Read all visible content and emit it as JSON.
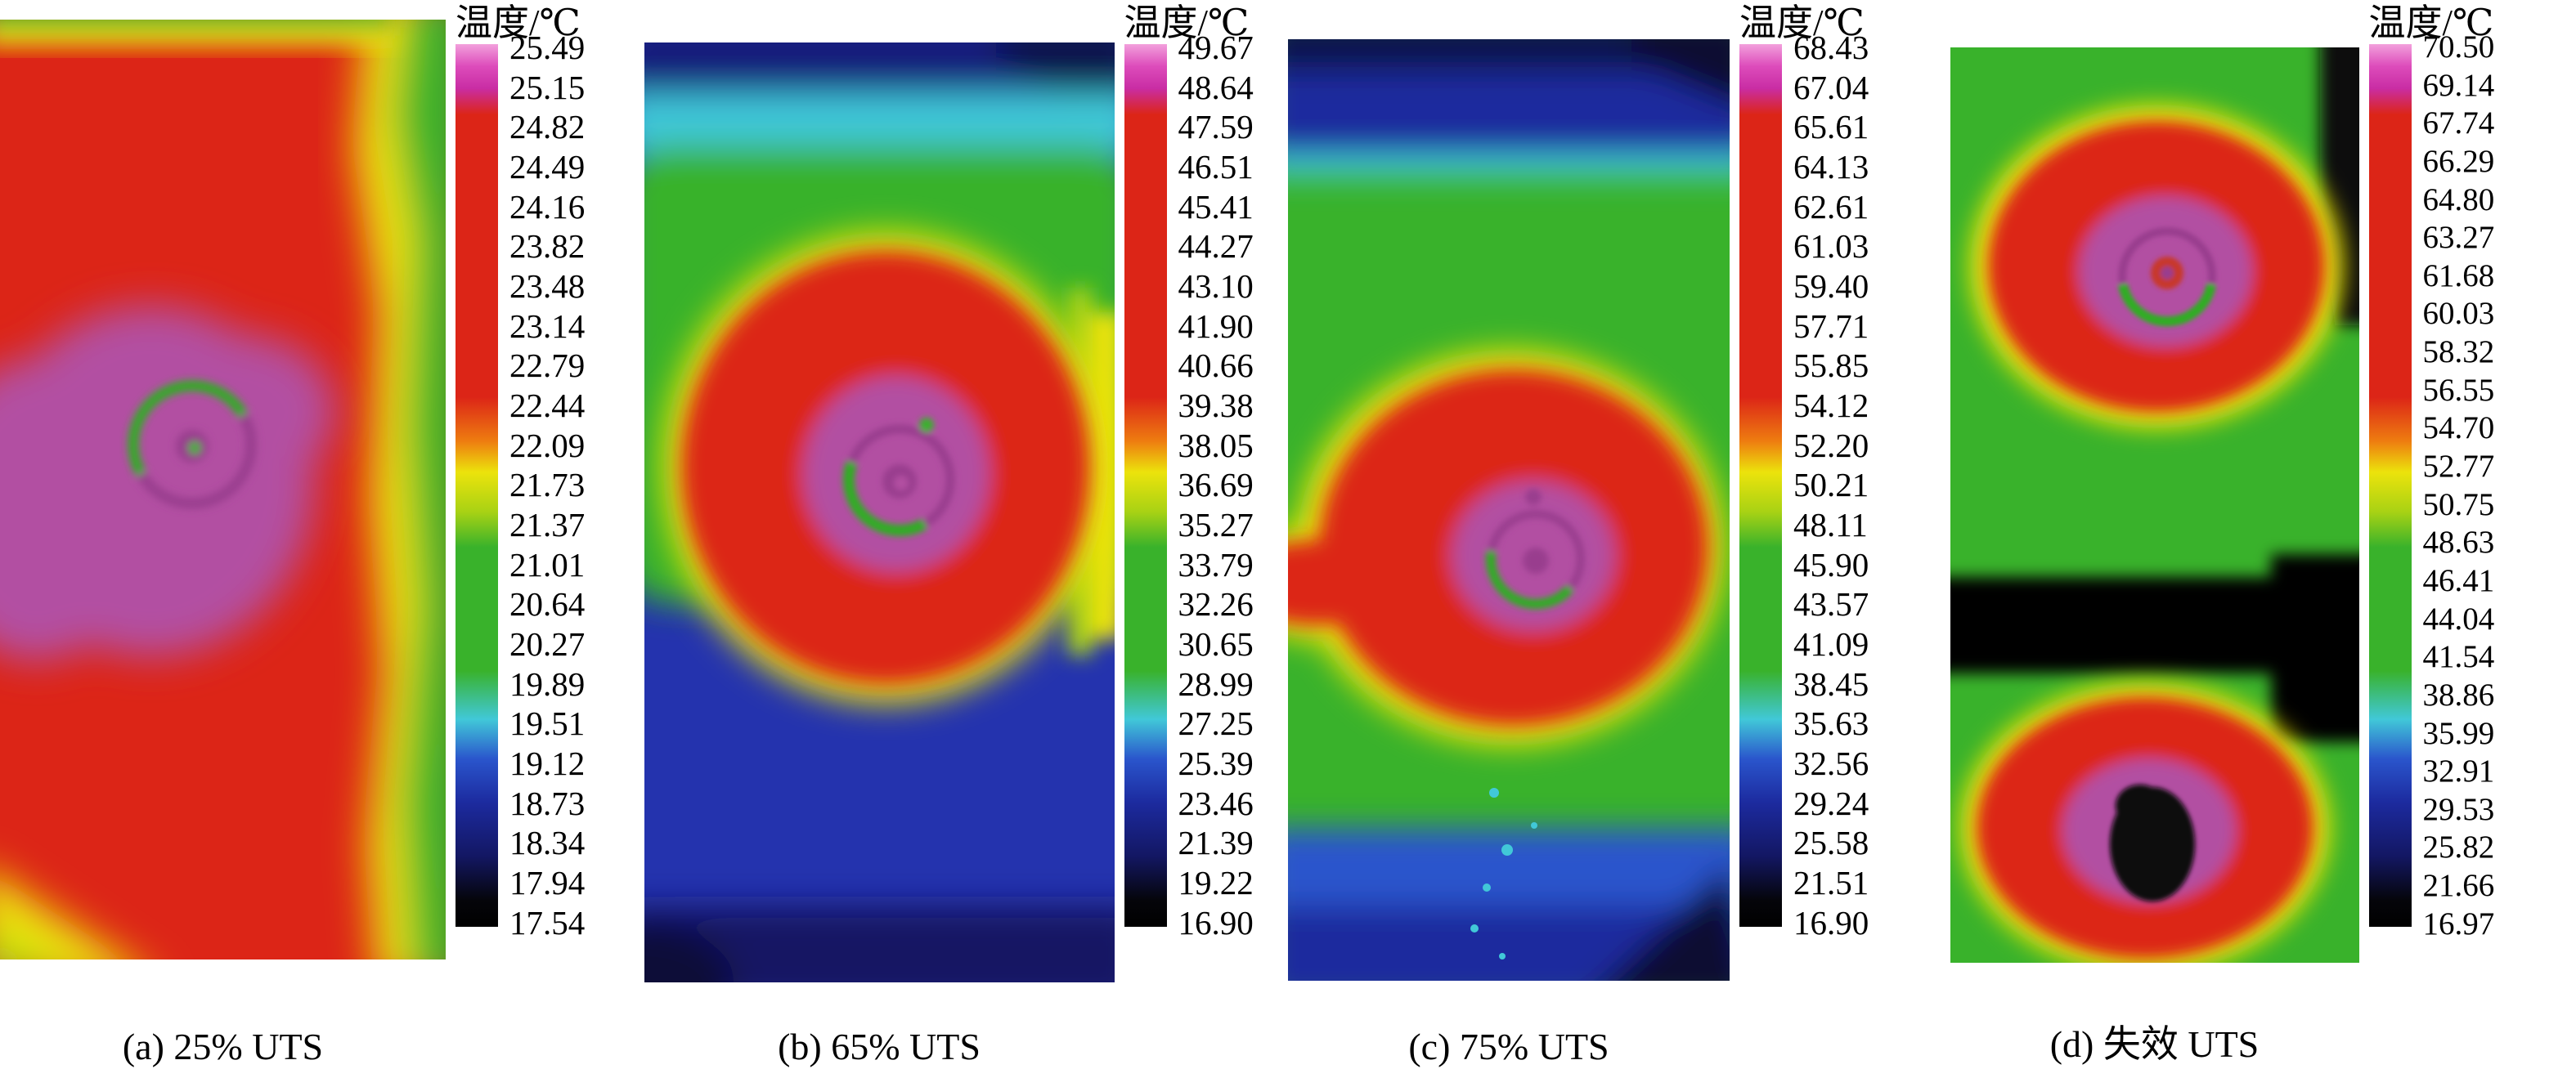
{
  "figure": {
    "colorbar_title": "温度/℃",
    "panels": [
      {
        "id": "a",
        "caption": "(a) 25% UTS"
      },
      {
        "id": "b",
        "caption": "(b) 65% UTS"
      },
      {
        "id": "c",
        "caption": "(c) 75% UTS"
      },
      {
        "id": "d",
        "caption": "(d) 失效 UTS"
      }
    ]
  },
  "chart_data": [
    {
      "type": "heatmap",
      "title": "(a) 25% UTS",
      "colorbar_label": "温度/℃",
      "colorbar_ticks": [
        25.49,
        25.15,
        24.82,
        24.49,
        24.16,
        23.82,
        23.48,
        23.14,
        22.79,
        22.44,
        22.09,
        21.73,
        21.37,
        21.01,
        20.64,
        20.27,
        19.89,
        19.51,
        19.12,
        18.73,
        18.34,
        17.94,
        17.54
      ],
      "temp_max_c": 25.49,
      "temp_min_c": 17.54,
      "palette_top_to_bottom": [
        "magenta",
        "red",
        "yellow",
        "green",
        "cyan",
        "blue",
        "dark-blue",
        "black"
      ]
    },
    {
      "type": "heatmap",
      "title": "(b) 65% UTS",
      "colorbar_label": "温度/℃",
      "colorbar_ticks": [
        49.67,
        48.64,
        47.59,
        46.51,
        45.41,
        44.27,
        43.1,
        41.9,
        40.66,
        39.38,
        38.05,
        36.69,
        35.27,
        33.79,
        32.26,
        30.65,
        28.99,
        27.25,
        25.39,
        23.46,
        21.39,
        19.22,
        16.9
      ],
      "temp_max_c": 49.67,
      "temp_min_c": 16.9,
      "palette_top_to_bottom": [
        "magenta",
        "red",
        "yellow",
        "green",
        "cyan",
        "blue",
        "dark-blue",
        "black"
      ]
    },
    {
      "type": "heatmap",
      "title": "(c) 75% UTS",
      "colorbar_label": "温度/℃",
      "colorbar_ticks": [
        68.43,
        67.04,
        65.61,
        64.13,
        62.61,
        61.03,
        59.4,
        57.71,
        55.85,
        54.12,
        52.2,
        50.21,
        48.11,
        45.9,
        43.57,
        41.09,
        38.45,
        35.63,
        32.56,
        29.24,
        25.58,
        21.51,
        16.9
      ],
      "temp_max_c": 68.43,
      "temp_min_c": 16.9,
      "palette_top_to_bottom": [
        "magenta",
        "red",
        "yellow",
        "green",
        "cyan",
        "blue",
        "dark-blue",
        "black"
      ]
    },
    {
      "type": "heatmap",
      "title": "(d) 失效 UTS",
      "colorbar_label": "温度/℃",
      "colorbar_ticks": [
        70.5,
        69.14,
        67.74,
        66.29,
        64.8,
        63.27,
        61.68,
        60.03,
        58.32,
        56.55,
        54.7,
        52.77,
        50.75,
        48.63,
        46.41,
        44.04,
        41.54,
        38.86,
        35.99,
        32.91,
        29.53,
        25.82,
        21.66,
        16.97
      ],
      "temp_max_c": 70.5,
      "temp_min_c": 16.97,
      "palette_top_to_bottom": [
        "magenta",
        "red",
        "yellow",
        "green",
        "cyan",
        "blue",
        "dark-blue",
        "black"
      ]
    }
  ],
  "colors": {
    "palette_magenta": "#c92da4",
    "palette_red": "#dc2517",
    "palette_orange": "#ee7d10",
    "palette_yellow": "#ece30c",
    "palette_green": "#39b22b",
    "palette_cyan": "#41c8d8",
    "palette_blue": "#2a55cc",
    "palette_dark_blue": "#1c2a9e",
    "palette_black": "#000000",
    "hotspot_purple": "#b24fa2",
    "background": "#ffffff"
  }
}
